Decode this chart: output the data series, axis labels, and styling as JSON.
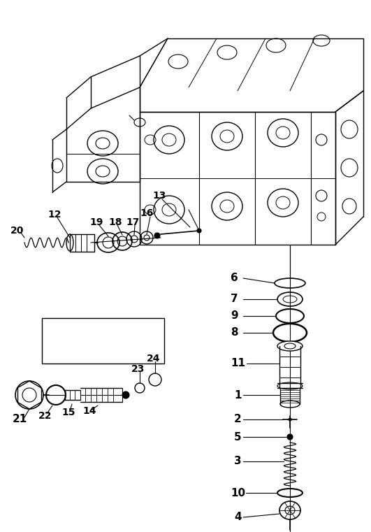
{
  "bg_color": "#ffffff",
  "line_color": "#000000",
  "fig_width": 5.31,
  "fig_height": 7.61,
  "dpi": 100
}
